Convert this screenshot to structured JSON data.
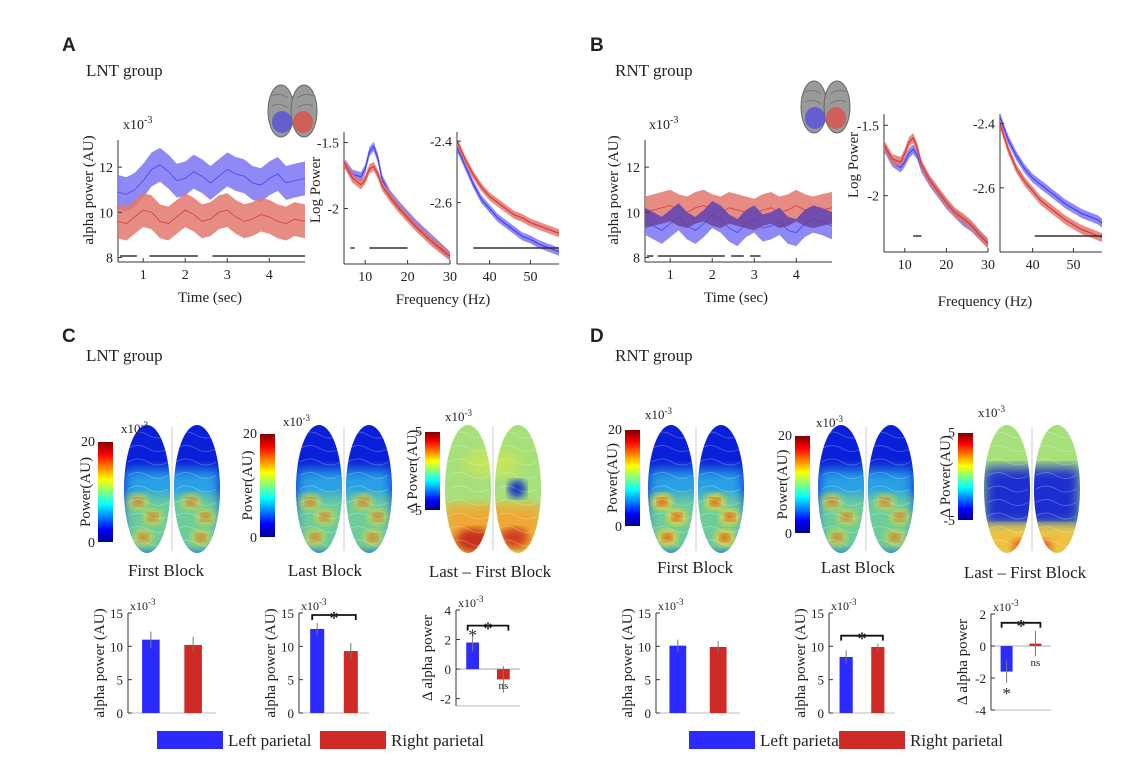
{
  "panels": {
    "A": {
      "letter": "A",
      "title": "LNT group"
    },
    "B": {
      "letter": "B",
      "title": "RNT group"
    },
    "C": {
      "letter": "C",
      "title": "LNT group"
    },
    "D": {
      "letter": "D",
      "title": "RNT group"
    }
  },
  "colors": {
    "left": "#3b3bff",
    "right": "#d9302c",
    "left_band": "#7b74f3",
    "right_band": "#e2786c",
    "overlap": "#6a3f9a"
  },
  "labels": {
    "time_axis": "Time (sec)",
    "freq_axis": "Frequency (Hz)",
    "alpha_axis": "alpha power (AU)",
    "log_axis": "Log Power",
    "power_axis": "Power(AU)",
    "delta_power_axis": "Δ Power(AU)",
    "delta_alpha_axis": "Δ alpha power",
    "mult": "x10",
    "mult_exp": "-3",
    "first_block": "First Block",
    "last_block": "Last Block",
    "diff_block": "Last – First Block",
    "star": "*",
    "ns": "ns"
  },
  "legend": {
    "left": "Left parietal",
    "right": "Right parietal"
  },
  "colorbar": {
    "power_max": "20",
    "power_min": "0",
    "delta_max": "5",
    "delta_min": "-5"
  },
  "chart_data": [
    {
      "id": "A-time",
      "type": "area",
      "xlabel": "Time (sec)",
      "ylabel": "alpha power (AU)",
      "multiplier": "x10-3",
      "xlim": [
        0.4,
        4.85
      ],
      "ylim": [
        7.8,
        13.2
      ],
      "xticks": [
        "1",
        "2",
        "3",
        "4"
      ],
      "yticks": [
        "8",
        "10",
        "12"
      ],
      "x": [
        0.4,
        0.6,
        0.8,
        1.0,
        1.2,
        1.4,
        1.6,
        1.8,
        2.0,
        2.2,
        2.4,
        2.6,
        2.8,
        3.0,
        3.2,
        3.4,
        3.6,
        3.8,
        4.0,
        4.2,
        4.4,
        4.6,
        4.85
      ],
      "series": [
        {
          "name": "Left parietal",
          "mean": [
            10.9,
            10.8,
            11.0,
            11.4,
            11.9,
            12.1,
            11.8,
            11.4,
            11.5,
            11.8,
            11.6,
            11.3,
            11.6,
            11.9,
            11.7,
            11.6,
            11.3,
            11.2,
            11.5,
            11.7,
            11.3,
            11.4,
            11.5
          ],
          "halfwidth": 0.75
        },
        {
          "name": "Right parietal",
          "mean": [
            9.6,
            9.5,
            9.8,
            10.1,
            10.0,
            9.6,
            9.5,
            9.8,
            10.1,
            9.9,
            9.6,
            9.7,
            10.0,
            10.1,
            9.8,
            9.6,
            9.7,
            9.9,
            9.8,
            9.6,
            9.5,
            9.7,
            9.6
          ],
          "halfwidth": 0.75
        }
      ],
      "significance_bars": [
        [
          0.45,
          0.85
        ],
        [
          1.15,
          2.3
        ],
        [
          2.65,
          4.85
        ]
      ]
    },
    {
      "id": "A-spec-low",
      "type": "area",
      "ylabel": "Log Power",
      "xlim": [
        5,
        30
      ],
      "ylim": [
        -2.42,
        -1.42
      ],
      "xticks": [
        "10",
        "20",
        "30"
      ],
      "yticks": [
        "-1.5",
        "-2"
      ],
      "x": [
        5,
        7,
        9,
        10,
        11,
        12,
        13,
        14,
        16,
        18,
        20,
        22,
        24,
        26,
        28,
        30
      ],
      "series": [
        {
          "name": "Left parietal",
          "mean": [
            -1.65,
            -1.74,
            -1.76,
            -1.7,
            -1.57,
            -1.53,
            -1.62,
            -1.78,
            -1.9,
            -1.98,
            -2.05,
            -2.12,
            -2.18,
            -2.24,
            -2.3,
            -2.36
          ],
          "halfwidth": 0.035
        },
        {
          "name": "Right parietal",
          "mean": [
            -1.65,
            -1.77,
            -1.82,
            -1.78,
            -1.7,
            -1.68,
            -1.74,
            -1.83,
            -1.92,
            -2.0,
            -2.07,
            -2.14,
            -2.2,
            -2.26,
            -2.31,
            -2.36
          ],
          "halfwidth": 0.035
        }
      ],
      "significance_bars": [
        [
          6.5,
          7.5
        ],
        [
          11,
          20
        ]
      ]
    },
    {
      "id": "A-spec-high",
      "type": "area",
      "xlim": [
        32,
        57
      ],
      "ylim": [
        -2.8,
        -2.37
      ],
      "xticks": [
        "40",
        "50"
      ],
      "yticks": [
        "-2.4",
        "-2.6"
      ],
      "x": [
        32,
        34,
        36,
        38,
        40,
        42,
        44,
        46,
        48,
        50,
        52,
        54,
        56,
        57
      ],
      "series": [
        {
          "name": "Left parietal",
          "mean": [
            -2.42,
            -2.48,
            -2.54,
            -2.59,
            -2.62,
            -2.65,
            -2.67,
            -2.69,
            -2.71,
            -2.72,
            -2.735,
            -2.745,
            -2.755,
            -2.76
          ],
          "halfwidth": 0.013
        },
        {
          "name": "Right parietal",
          "mean": [
            -2.4,
            -2.46,
            -2.51,
            -2.55,
            -2.58,
            -2.6,
            -2.62,
            -2.64,
            -2.65,
            -2.665,
            -2.675,
            -2.685,
            -2.695,
            -2.7
          ],
          "halfwidth": 0.013
        }
      ],
      "significance_bars": [
        [
          36,
          57
        ]
      ]
    },
    {
      "id": "B-time",
      "type": "area",
      "xlabel": "Time (sec)",
      "ylabel": "alpha power (AU)",
      "multiplier": "x10-3",
      "xlim": [
        0.4,
        4.85
      ],
      "ylim": [
        7.8,
        13.2
      ],
      "xticks": [
        "1",
        "2",
        "3",
        "4"
      ],
      "yticks": [
        "8",
        "10",
        "12"
      ],
      "x": [
        0.4,
        0.6,
        0.8,
        1.0,
        1.2,
        1.4,
        1.6,
        1.8,
        2.0,
        2.2,
        2.4,
        2.6,
        2.8,
        3.0,
        3.2,
        3.4,
        3.6,
        3.8,
        4.0,
        4.2,
        4.4,
        4.6,
        4.85
      ],
      "series": [
        {
          "name": "Right parietal",
          "mean": [
            10.0,
            10.1,
            10.2,
            10.3,
            10.1,
            10.0,
            10.2,
            10.3,
            10.1,
            10.0,
            10.2,
            10.1,
            10.0,
            9.9,
            10.1,
            10.2,
            10.0,
            10.1,
            10.3,
            10.1,
            10.0,
            10.1,
            10.2
          ],
          "halfwidth": 0.7
        },
        {
          "name": "Left parietal",
          "mean": [
            9.6,
            9.4,
            9.2,
            9.5,
            9.8,
            9.4,
            9.2,
            9.5,
            9.9,
            9.7,
            9.3,
            9.1,
            9.5,
            9.7,
            9.3,
            9.4,
            9.6,
            9.2,
            9.1,
            9.5,
            9.7,
            9.6,
            9.4
          ],
          "halfwidth": 0.6
        }
      ],
      "significance_bars": [
        [
          0.45,
          0.6
        ],
        [
          0.7,
          2.3
        ],
        [
          2.45,
          2.75
        ],
        [
          2.9,
          3.15
        ]
      ]
    },
    {
      "id": "B-spec-low",
      "type": "area",
      "ylabel": "Log Power",
      "xlim": [
        5,
        30
      ],
      "ylim": [
        -2.4,
        -1.42
      ],
      "xticks": [
        "10",
        "20",
        "30"
      ],
      "yticks": [
        "-1.5",
        "-2"
      ],
      "x": [
        5,
        7,
        9,
        10,
        11,
        12,
        13,
        14,
        16,
        18,
        20,
        22,
        24,
        26,
        28,
        30
      ],
      "series": [
        {
          "name": "Left parietal",
          "mean": [
            -1.65,
            -1.76,
            -1.8,
            -1.76,
            -1.7,
            -1.67,
            -1.71,
            -1.8,
            -1.9,
            -1.98,
            -2.06,
            -2.12,
            -2.18,
            -2.22,
            -2.28,
            -2.34
          ],
          "halfwidth": 0.035
        },
        {
          "name": "Right parietal",
          "mean": [
            -1.64,
            -1.74,
            -1.76,
            -1.7,
            -1.62,
            -1.59,
            -1.66,
            -1.78,
            -1.89,
            -1.97,
            -2.05,
            -2.12,
            -2.16,
            -2.21,
            -2.28,
            -2.34
          ],
          "halfwidth": 0.035
        }
      ],
      "significance_bars": [
        [
          12,
          14
        ]
      ]
    },
    {
      "id": "B-spec-high",
      "type": "area",
      "xlim": [
        32,
        57
      ],
      "ylim": [
        -2.8,
        -2.37
      ],
      "xticks": [
        "40",
        "50"
      ],
      "yticks": [
        "-2.4",
        "-2.6"
      ],
      "x": [
        32,
        34,
        36,
        38,
        40,
        42,
        44,
        46,
        48,
        50,
        52,
        54,
        56,
        57
      ],
      "series": [
        {
          "name": "Left parietal",
          "mean": [
            -2.38,
            -2.45,
            -2.5,
            -2.54,
            -2.57,
            -2.59,
            -2.61,
            -2.63,
            -2.65,
            -2.665,
            -2.68,
            -2.69,
            -2.7,
            -2.71
          ],
          "halfwidth": 0.014
        },
        {
          "name": "Right parietal",
          "mean": [
            -2.4,
            -2.48,
            -2.54,
            -2.58,
            -2.61,
            -2.64,
            -2.66,
            -2.68,
            -2.7,
            -2.715,
            -2.73,
            -2.74,
            -2.75,
            -2.755
          ],
          "halfwidth": 0.014
        }
      ],
      "significance_bars": [
        [
          40.5,
          57
        ]
      ]
    },
    {
      "id": "C-first",
      "type": "bar",
      "ylabel": "alpha power (AU)",
      "multiplier": "x10-3",
      "ylim": [
        0,
        15
      ],
      "yticks": [
        "0",
        "5",
        "10",
        "15"
      ],
      "categories": [
        "Left parietal",
        "Right parietal"
      ],
      "values": [
        11.0,
        10.2
      ],
      "errors": [
        1.2,
        1.2
      ]
    },
    {
      "id": "C-last",
      "type": "bar",
      "ylabel": "alpha power (AU)",
      "multiplier": "x10-3",
      "ylim": [
        0,
        15
      ],
      "yticks": [
        "0",
        "5",
        "10",
        "15"
      ],
      "categories": [
        "Left parietal",
        "Right parietal"
      ],
      "values": [
        12.6,
        9.3
      ],
      "errors": [
        0.9,
        1.2
      ],
      "comparison": "*"
    },
    {
      "id": "C-diff",
      "type": "bar",
      "ylabel": "Δ alpha power",
      "multiplier": "x10-3",
      "ylim": [
        -2.5,
        4
      ],
      "yticks": [
        "-2",
        "0",
        "2",
        "4"
      ],
      "categories": [
        "Left parietal",
        "Right parietal"
      ],
      "values": [
        1.8,
        -0.7
      ],
      "errors": [
        0.6,
        0.9
      ],
      "comparison": "*",
      "bar_marks": [
        "*",
        "ns"
      ]
    },
    {
      "id": "D-first",
      "type": "bar",
      "ylabel": "alpha power (AU)",
      "multiplier": "x10-3",
      "ylim": [
        0,
        15
      ],
      "yticks": [
        "0",
        "5",
        "10",
        "15"
      ],
      "categories": [
        "Left parietal",
        "Right parietal"
      ],
      "values": [
        10.1,
        9.9
      ],
      "errors": [
        0.9,
        0.9
      ]
    },
    {
      "id": "D-last",
      "type": "bar",
      "ylabel": "alpha power (AU)",
      "multiplier": "x10-3",
      "ylim": [
        0,
        15
      ],
      "yticks": [
        "0",
        "5",
        "10",
        "15"
      ],
      "categories": [
        "Left parietal",
        "Right parietal"
      ],
      "values": [
        8.4,
        9.9
      ],
      "errors": [
        1.0,
        0.5
      ],
      "comparison": "*"
    },
    {
      "id": "D-diff",
      "type": "bar",
      "ylabel": "Δ alpha power",
      "multiplier": "x10-3",
      "ylim": [
        -4,
        2
      ],
      "yticks": [
        "-4",
        "-2",
        "0",
        "2"
      ],
      "categories": [
        "Left parietal",
        "Right parietal"
      ],
      "values": [
        -1.6,
        0.15
      ],
      "errors": [
        0.7,
        0.8
      ],
      "comparison": "*",
      "bar_marks": [
        "*",
        "ns"
      ]
    }
  ]
}
